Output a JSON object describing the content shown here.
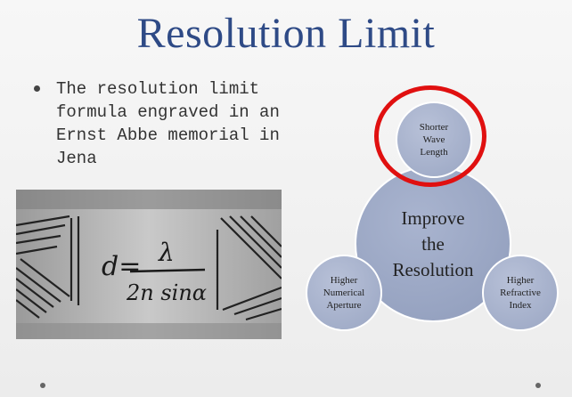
{
  "slide": {
    "title": "Resolution Limit",
    "bullet": {
      "lines": [
        "The resolution limit",
        "formula engraved in an",
        "Ernst Abbe memorial in",
        "Jena"
      ]
    },
    "photo": {
      "engraving_lines": [
        "d=",
        "λ",
        "2n sinα"
      ]
    },
    "diagram": {
      "center_lines": [
        "Improve",
        "the",
        "Resolution"
      ],
      "top_lines": [
        "Shorter",
        "Wave",
        "Length"
      ],
      "left_lines": [
        "Higher",
        "Numerical",
        "Aperture"
      ],
      "right_lines": [
        "Higher",
        "Refractive",
        "Index"
      ],
      "highlight_color": "#e01010"
    }
  }
}
